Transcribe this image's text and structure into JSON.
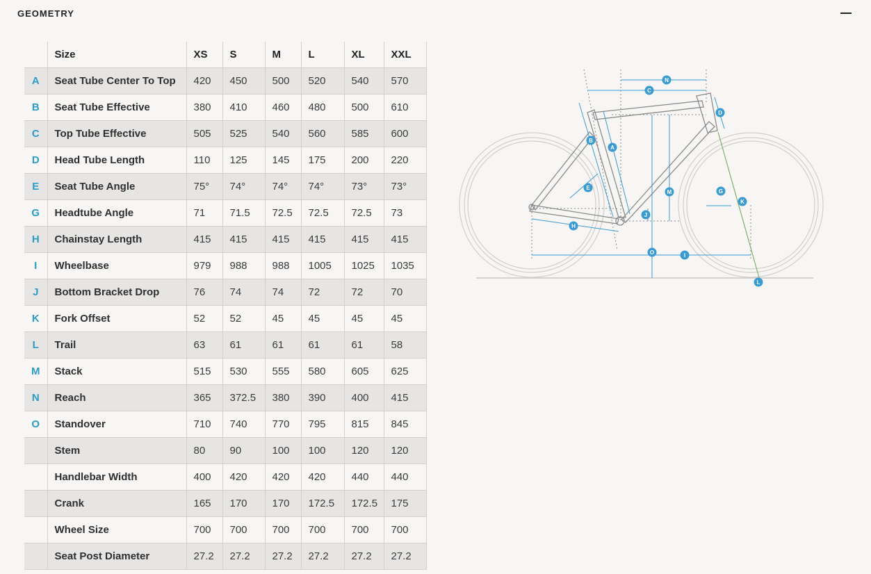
{
  "section": {
    "title": "GEOMETRY"
  },
  "table": {
    "columns": [
      "Size",
      "XS",
      "S",
      "M",
      "L",
      "XL",
      "XXL"
    ],
    "rows": [
      {
        "letter": "A",
        "label": "Seat Tube Center To Top",
        "values": [
          "420",
          "450",
          "500",
          "520",
          "540",
          "570"
        ]
      },
      {
        "letter": "B",
        "label": "Seat Tube Effective",
        "values": [
          "380",
          "410",
          "460",
          "480",
          "500",
          "610"
        ]
      },
      {
        "letter": "C",
        "label": "Top Tube Effective",
        "values": [
          "505",
          "525",
          "540",
          "560",
          "585",
          "600"
        ]
      },
      {
        "letter": "D",
        "label": "Head Tube Length",
        "values": [
          "110",
          "125",
          "145",
          "175",
          "200",
          "220"
        ]
      },
      {
        "letter": "E",
        "label": "Seat Tube Angle",
        "values": [
          "75°",
          "74°",
          "74°",
          "74°",
          "73°",
          "73°"
        ]
      },
      {
        "letter": "G",
        "label": "Headtube Angle",
        "values": [
          "71",
          "71.5",
          "72.5",
          "72.5",
          "72.5",
          "73"
        ]
      },
      {
        "letter": "H",
        "label": "Chainstay Length",
        "values": [
          "415",
          "415",
          "415",
          "415",
          "415",
          "415"
        ]
      },
      {
        "letter": "I",
        "label": "Wheelbase",
        "values": [
          "979",
          "988",
          "988",
          "1005",
          "1025",
          "1035"
        ]
      },
      {
        "letter": "J",
        "label": "Bottom Bracket Drop",
        "values": [
          "76",
          "74",
          "74",
          "72",
          "72",
          "70"
        ]
      },
      {
        "letter": "K",
        "label": "Fork Offset",
        "values": [
          "52",
          "52",
          "45",
          "45",
          "45",
          "45"
        ]
      },
      {
        "letter": "L",
        "label": "Trail",
        "values": [
          "63",
          "61",
          "61",
          "61",
          "61",
          "58"
        ]
      },
      {
        "letter": "M",
        "label": "Stack",
        "values": [
          "515",
          "530",
          "555",
          "580",
          "605",
          "625"
        ]
      },
      {
        "letter": "N",
        "label": "Reach",
        "values": [
          "365",
          "372.5",
          "380",
          "390",
          "400",
          "415"
        ]
      },
      {
        "letter": "O",
        "label": "Standover",
        "values": [
          "710",
          "740",
          "770",
          "795",
          "815",
          "845"
        ]
      },
      {
        "letter": "",
        "label": "Stem",
        "values": [
          "80",
          "90",
          "100",
          "100",
          "120",
          "120"
        ]
      },
      {
        "letter": "",
        "label": "Handlebar Width",
        "values": [
          "400",
          "420",
          "420",
          "420",
          "440",
          "440"
        ]
      },
      {
        "letter": "",
        "label": "Crank",
        "values": [
          "165",
          "170",
          "170",
          "172.5",
          "172.5",
          "175"
        ]
      },
      {
        "letter": "",
        "label": "Wheel Size",
        "values": [
          "700",
          "700",
          "700",
          "700",
          "700",
          "700"
        ]
      },
      {
        "letter": "",
        "label": "Seat Post Diameter",
        "values": [
          "27.2",
          "27.2",
          "27.2",
          "27.2",
          "27.2",
          "27.2"
        ]
      }
    ]
  },
  "diagram": {
    "markers": [
      "A",
      "B",
      "C",
      "D",
      "E",
      "G",
      "H",
      "I",
      "J",
      "K",
      "L",
      "M",
      "N",
      "O"
    ],
    "colors": {
      "accent": "#3a9bd1",
      "frame": "#8a8a8a",
      "wheel": "#d0cfcc",
      "fork_line": "#7fae6a"
    }
  },
  "icons": {
    "collapse": "minus-icon"
  }
}
